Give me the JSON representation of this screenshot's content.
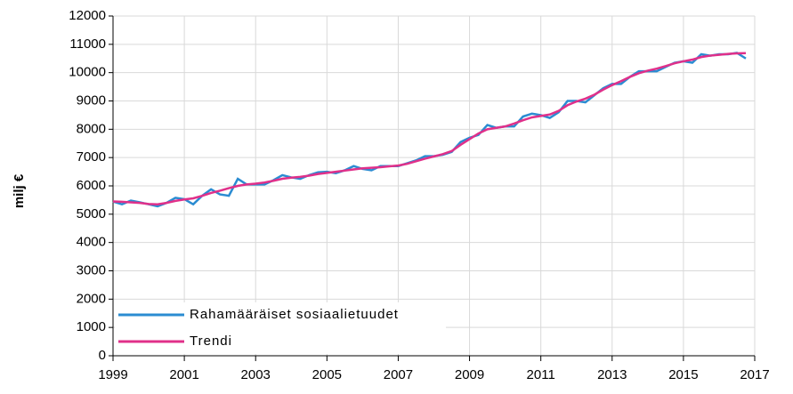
{
  "chart_data": {
    "type": "line",
    "y_label": "milj €",
    "x": [
      1999,
      1999.25,
      1999.5,
      1999.75,
      2000,
      2000.25,
      2000.5,
      2000.75,
      2001,
      2001.25,
      2001.5,
      2001.75,
      2002,
      2002.25,
      2002.5,
      2002.75,
      2003,
      2003.25,
      2003.5,
      2003.75,
      2004,
      2004.25,
      2004.5,
      2004.75,
      2005,
      2005.25,
      2005.5,
      2005.75,
      2006,
      2006.25,
      2006.5,
      2006.75,
      2007,
      2007.25,
      2007.5,
      2007.75,
      2008,
      2008.25,
      2008.5,
      2008.75,
      2009,
      2009.25,
      2009.5,
      2009.75,
      2010,
      2010.25,
      2010.5,
      2010.75,
      2011,
      2011.25,
      2011.5,
      2011.75,
      2012,
      2012.25,
      2012.5,
      2012.75,
      2013,
      2013.25,
      2013.5,
      2013.75,
      2014,
      2014.25,
      2014.5,
      2014.75,
      2015,
      2015.25,
      2015.5,
      2015.75,
      2016,
      2016.25,
      2016.5,
      2016.75
    ],
    "series": [
      {
        "name": "Rahamääräiset sosiaalietuudet",
        "color": "#2b8cd2",
        "values": [
          5450,
          5350,
          5480,
          5420,
          5350,
          5280,
          5400,
          5580,
          5530,
          5350,
          5650,
          5880,
          5700,
          5650,
          6250,
          6050,
          6050,
          6050,
          6200,
          6380,
          6300,
          6250,
          6380,
          6480,
          6500,
          6450,
          6550,
          6700,
          6600,
          6550,
          6700,
          6700,
          6700,
          6800,
          6900,
          7050,
          7050,
          7100,
          7200,
          7550,
          7700,
          7800,
          8150,
          8050,
          8100,
          8100,
          8450,
          8550,
          8500,
          8400,
          8600,
          9000,
          9000,
          8950,
          9200,
          9450,
          9600,
          9600,
          9850,
          10050,
          10050,
          10050,
          10200,
          10350,
          10400,
          10350,
          10650,
          10600,
          10650,
          10650,
          10700,
          10500
        ]
      },
      {
        "name": "Trendi",
        "color": "#e0308a",
        "values": [
          5450,
          5440,
          5420,
          5400,
          5360,
          5350,
          5400,
          5470,
          5520,
          5560,
          5650,
          5750,
          5830,
          5920,
          6000,
          6050,
          6080,
          6120,
          6180,
          6250,
          6290,
          6320,
          6360,
          6420,
          6460,
          6500,
          6540,
          6580,
          6620,
          6640,
          6660,
          6690,
          6720,
          6780,
          6870,
          6960,
          7040,
          7120,
          7230,
          7450,
          7650,
          7850,
          8000,
          8050,
          8100,
          8200,
          8320,
          8420,
          8470,
          8520,
          8650,
          8850,
          8980,
          9080,
          9220,
          9400,
          9560,
          9700,
          9850,
          9980,
          10070,
          10140,
          10230,
          10330,
          10400,
          10460,
          10550,
          10600,
          10630,
          10660,
          10680,
          10690
        ]
      }
    ],
    "xlim": [
      1999,
      2017
    ],
    "xticks": [
      1999,
      2001,
      2003,
      2005,
      2007,
      2009,
      2011,
      2013,
      2015,
      2017
    ],
    "ylim": [
      0,
      12000
    ],
    "yticks": [
      0,
      1000,
      2000,
      3000,
      4000,
      5000,
      6000,
      7000,
      8000,
      9000,
      10000,
      11000,
      12000
    ],
    "grid": true,
    "legend": "lower left"
  }
}
